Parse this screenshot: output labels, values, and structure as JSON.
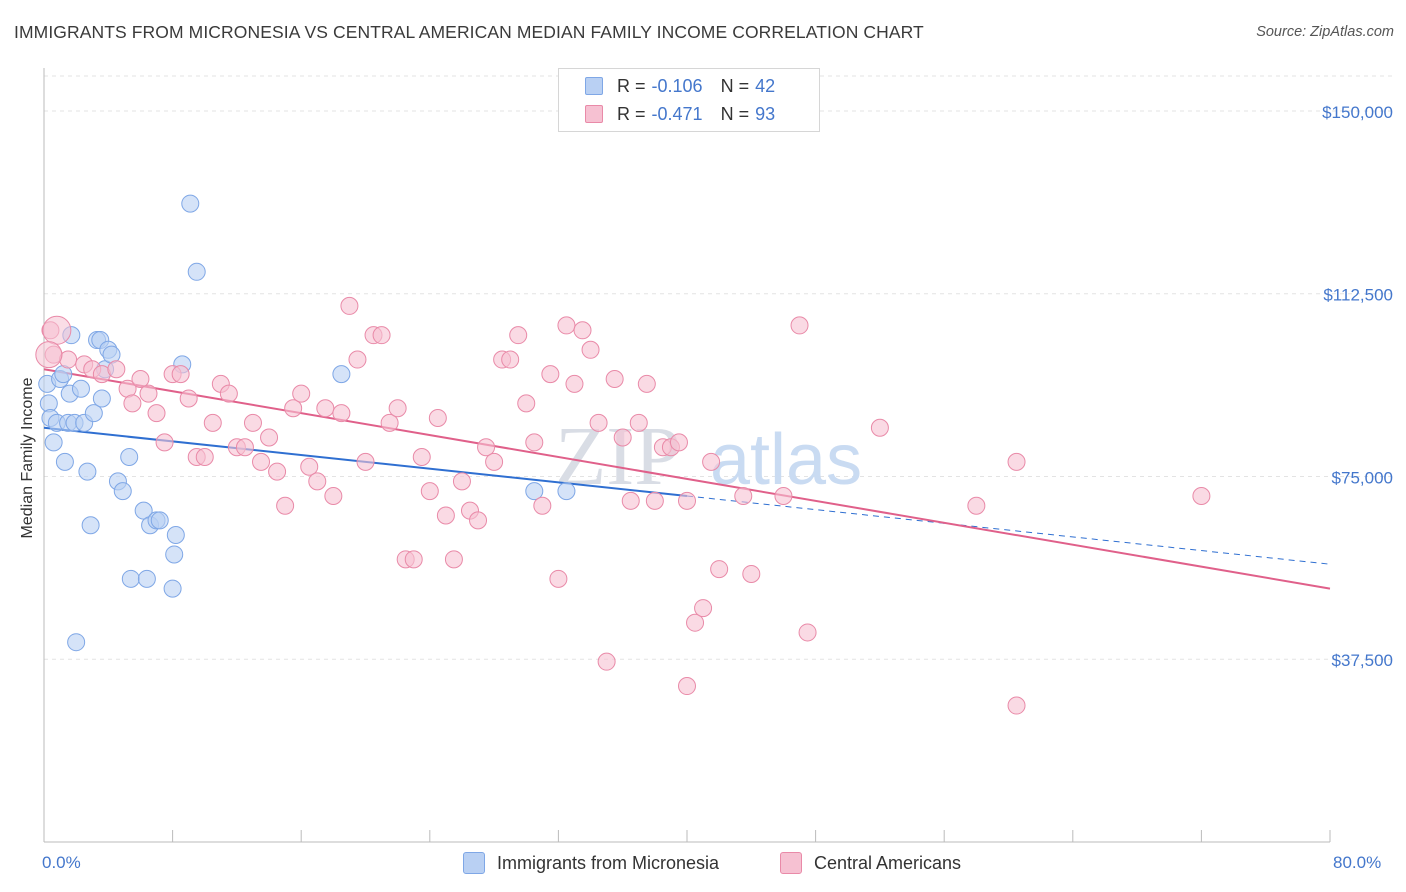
{
  "title": "IMMIGRANTS FROM MICRONESIA VS CENTRAL AMERICAN MEDIAN FAMILY INCOME CORRELATION CHART",
  "source": "Source: ZipAtlas.com",
  "watermark_zip": "ZIP",
  "watermark_atlas": "atlas",
  "chart_data": {
    "type": "scatter",
    "xlabel": "",
    "ylabel": "Median Family Income",
    "xlim": [
      0,
      80
    ],
    "ylim": [
      0,
      158000
    ],
    "x_tick_labels": [
      "0.0%",
      "80.0%"
    ],
    "y_ticks": [
      37500,
      75000,
      112500,
      150000
    ],
    "y_tick_labels": [
      "$37,500",
      "$75,000",
      "$112,500",
      "$150,000"
    ],
    "grid": true,
    "legend_position": "top-center",
    "series": [
      {
        "name": "Immigrants from Micronesia",
        "color": "#7fa7e6",
        "fill": "#b9d0f3",
        "r_label": "R =",
        "r_value": "-0.106",
        "n_label": "N =",
        "n_value": "42",
        "trend": {
          "x0": 0,
          "y0": 85000,
          "x1": 40,
          "y1": 71000,
          "dashed_to_x": 80,
          "dashed_to_y": 57000
        },
        "points": [
          [
            0.2,
            94000
          ],
          [
            0.3,
            90000
          ],
          [
            0.4,
            87000
          ],
          [
            0.6,
            82000
          ],
          [
            0.8,
            86000
          ],
          [
            1.0,
            95000
          ],
          [
            1.2,
            96000
          ],
          [
            1.3,
            78000
          ],
          [
            1.5,
            86000
          ],
          [
            1.6,
            92000
          ],
          [
            1.7,
            104000
          ],
          [
            1.9,
            86000
          ],
          [
            2.0,
            41000
          ],
          [
            2.3,
            93000
          ],
          [
            2.5,
            86000
          ],
          [
            2.7,
            76000
          ],
          [
            2.9,
            65000
          ],
          [
            3.1,
            88000
          ],
          [
            3.3,
            103000
          ],
          [
            3.5,
            103000
          ],
          [
            3.6,
            91000
          ],
          [
            3.8,
            97000
          ],
          [
            4.0,
            101000
          ],
          [
            4.2,
            100000
          ],
          [
            4.6,
            74000
          ],
          [
            4.9,
            72000
          ],
          [
            5.3,
            79000
          ],
          [
            5.4,
            54000
          ],
          [
            6.2,
            68000
          ],
          [
            6.4,
            54000
          ],
          [
            6.6,
            65000
          ],
          [
            7.0,
            66000
          ],
          [
            7.2,
            66000
          ],
          [
            8.0,
            52000
          ],
          [
            8.1,
            59000
          ],
          [
            8.2,
            63000
          ],
          [
            8.6,
            98000
          ],
          [
            9.1,
            131000
          ],
          [
            9.5,
            117000
          ],
          [
            18.5,
            96000
          ],
          [
            32.5,
            72000
          ],
          [
            30.5,
            72000
          ]
        ]
      },
      {
        "name": "Central Americans",
        "color": "#e98aa8",
        "fill": "#f6c1d2",
        "r_label": "R =",
        "r_value": "-0.471",
        "n_label": "N =",
        "n_value": "93",
        "trend": {
          "x0": 0,
          "y0": 97000,
          "x1": 80,
          "y1": 52000
        },
        "points": [
          [
            0.4,
            105000
          ],
          [
            0.6,
            100000
          ],
          [
            1.5,
            99000
          ],
          [
            2.5,
            98000
          ],
          [
            3.0,
            97000
          ],
          [
            3.6,
            96000
          ],
          [
            4.5,
            97000
          ],
          [
            5.2,
            93000
          ],
          [
            5.5,
            90000
          ],
          [
            6.0,
            95000
          ],
          [
            6.5,
            92000
          ],
          [
            7.0,
            88000
          ],
          [
            7.5,
            82000
          ],
          [
            8.0,
            96000
          ],
          [
            8.5,
            96000
          ],
          [
            9.0,
            91000
          ],
          [
            9.5,
            79000
          ],
          [
            10.0,
            79000
          ],
          [
            10.5,
            86000
          ],
          [
            11.0,
            94000
          ],
          [
            11.5,
            92000
          ],
          [
            12.0,
            81000
          ],
          [
            12.5,
            81000
          ],
          [
            13.0,
            86000
          ],
          [
            13.5,
            78000
          ],
          [
            14.0,
            83000
          ],
          [
            14.5,
            76000
          ],
          [
            15.0,
            69000
          ],
          [
            15.5,
            89000
          ],
          [
            16.0,
            92000
          ],
          [
            16.5,
            77000
          ],
          [
            17.0,
            74000
          ],
          [
            17.5,
            89000
          ],
          [
            18.0,
            71000
          ],
          [
            18.5,
            88000
          ],
          [
            19.0,
            110000
          ],
          [
            19.5,
            99000
          ],
          [
            20.0,
            78000
          ],
          [
            20.5,
            104000
          ],
          [
            21.0,
            104000
          ],
          [
            21.5,
            86000
          ],
          [
            22.0,
            89000
          ],
          [
            22.5,
            58000
          ],
          [
            23.0,
            58000
          ],
          [
            23.5,
            79000
          ],
          [
            24.0,
            72000
          ],
          [
            24.5,
            87000
          ],
          [
            25.0,
            67000
          ],
          [
            25.5,
            58000
          ],
          [
            26.0,
            74000
          ],
          [
            26.5,
            68000
          ],
          [
            27.0,
            66000
          ],
          [
            27.5,
            81000
          ],
          [
            28.0,
            78000
          ],
          [
            28.5,
            99000
          ],
          [
            29.0,
            99000
          ],
          [
            29.5,
            104000
          ],
          [
            30.0,
            90000
          ],
          [
            30.5,
            82000
          ],
          [
            31.0,
            69000
          ],
          [
            31.5,
            96000
          ],
          [
            32.0,
            54000
          ],
          [
            32.5,
            106000
          ],
          [
            33.0,
            94000
          ],
          [
            33.5,
            105000
          ],
          [
            34.0,
            101000
          ],
          [
            34.5,
            86000
          ],
          [
            35.0,
            37000
          ],
          [
            35.5,
            95000
          ],
          [
            36.0,
            83000
          ],
          [
            36.5,
            70000
          ],
          [
            37.0,
            86000
          ],
          [
            37.5,
            94000
          ],
          [
            38.0,
            70000
          ],
          [
            38.5,
            81000
          ],
          [
            39.0,
            81000
          ],
          [
            39.5,
            82000
          ],
          [
            40.0,
            70000
          ],
          [
            40.5,
            45000
          ],
          [
            41.0,
            48000
          ],
          [
            41.5,
            78000
          ],
          [
            42.0,
            56000
          ],
          [
            43.5,
            71000
          ],
          [
            44.0,
            55000
          ],
          [
            46.0,
            71000
          ],
          [
            47.0,
            106000
          ],
          [
            47.5,
            43000
          ],
          [
            52.0,
            85000
          ],
          [
            58.0,
            69000
          ],
          [
            60.5,
            28000
          ],
          [
            60.5,
            78000
          ],
          [
            72.0,
            71000
          ],
          [
            40.0,
            32000
          ]
        ]
      }
    ]
  }
}
